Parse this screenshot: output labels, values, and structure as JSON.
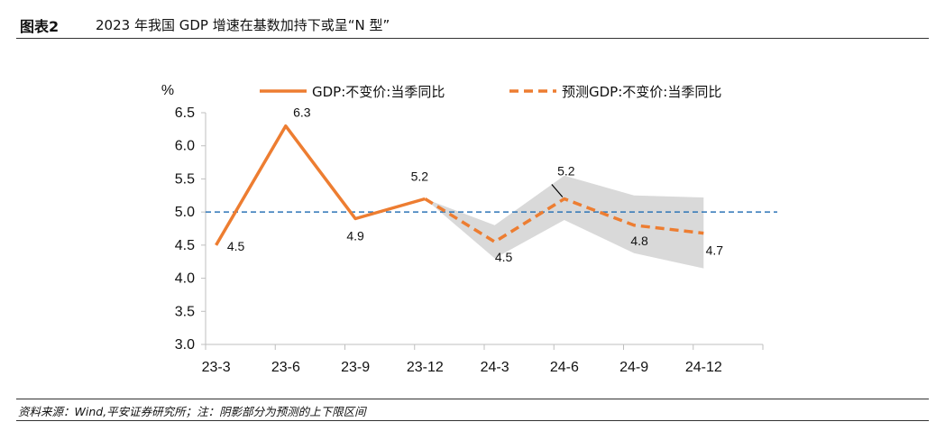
{
  "header": {
    "figure_number": "图表2",
    "title": "2023 年我国 GDP 增速在基数加持下或呈“N 型”"
  },
  "footer": {
    "source": "资料来源：Wind,平安证券研究所；注：阴影部分为预测的上下限区间"
  },
  "chart_data": {
    "type": "line",
    "unit_label": "%",
    "categories": [
      "23-3",
      "23-6",
      "23-9",
      "23-12",
      "24-3",
      "24-6",
      "24-9",
      "24-12"
    ],
    "y_ticks": [
      "3.0",
      "3.5",
      "4.0",
      "4.5",
      "5.0",
      "5.5",
      "6.0",
      "6.5"
    ],
    "ylim": [
      3.0,
      6.5
    ],
    "reference_line": 5.0,
    "series": [
      {
        "name": "GDP:不变价:当季同比",
        "style": "solid",
        "color": "#ED7D31",
        "values": [
          4.5,
          6.3,
          4.9,
          5.2,
          null,
          null,
          null,
          null
        ]
      },
      {
        "name": "预测GDP:不变价:当季同比",
        "style": "dashed",
        "color": "#ED7D31",
        "values": [
          null,
          null,
          null,
          5.2,
          4.55,
          5.2,
          4.8,
          4.68
        ]
      }
    ],
    "band": {
      "lower": [
        null,
        null,
        null,
        5.2,
        4.3,
        4.88,
        4.38,
        4.15
      ],
      "upper": [
        null,
        null,
        null,
        5.2,
        4.8,
        5.55,
        5.25,
        5.22
      ],
      "color": "#D9D9D9"
    },
    "data_labels": [
      {
        "index": 0,
        "text": "4.5"
      },
      {
        "index": 1,
        "text": "6.3"
      },
      {
        "index": 2,
        "text": "4.9"
      },
      {
        "index": 3,
        "text": "5.2"
      },
      {
        "index": 4,
        "text": "4.5"
      },
      {
        "index": 5,
        "text": "5.2"
      },
      {
        "index": 6,
        "text": "4.8"
      },
      {
        "index": 7,
        "text": "4.7"
      }
    ],
    "colors": {
      "reference": "#2E75B6",
      "axis": "#BFBFBF",
      "leader": "#000000"
    }
  }
}
